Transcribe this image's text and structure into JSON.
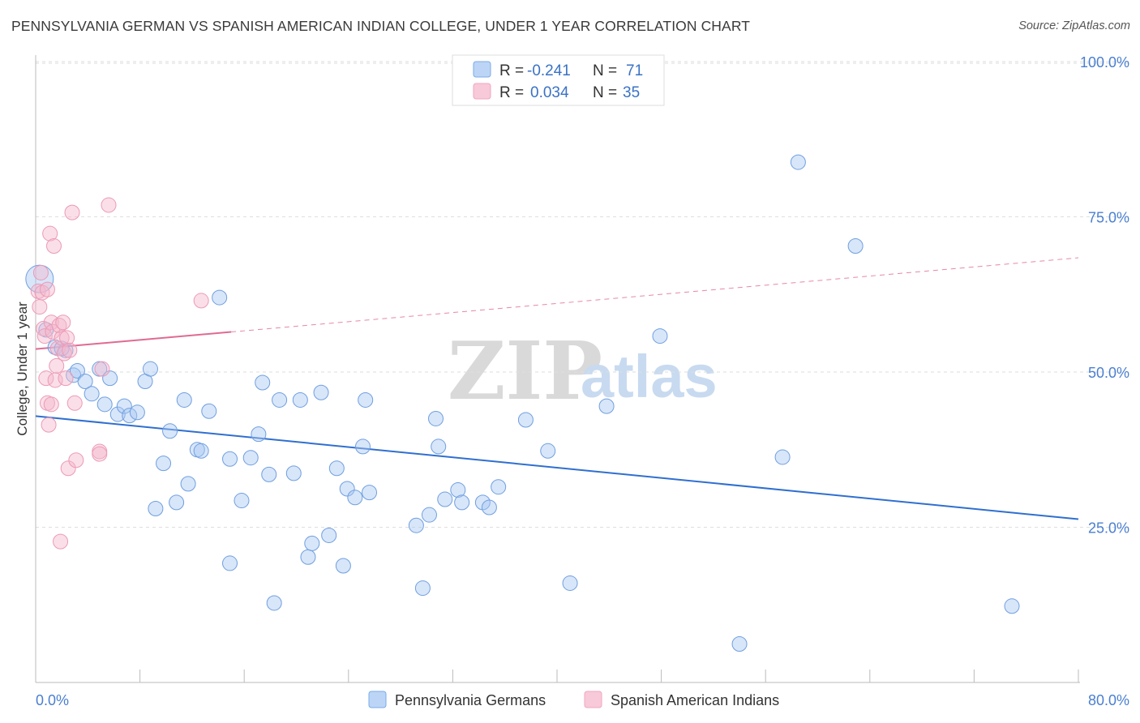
{
  "title": "PENNSYLVANIA GERMAN VS SPANISH AMERICAN INDIAN COLLEGE, UNDER 1 YEAR CORRELATION CHART",
  "source": "Source: ZipAtlas.com",
  "watermark": {
    "zip": "ZIP",
    "atlas": "atlas"
  },
  "legend": {
    "rows": [
      {
        "r_label": "R =",
        "r_value": "-0.241",
        "n_label": "N =",
        "n_value": "71",
        "color": "#a9c8f2"
      },
      {
        "r_label": "R =",
        "r_value": "0.034",
        "n_label": "N =",
        "n_value": "35",
        "color": "#f5b8cc"
      }
    ]
  },
  "bottom_legend": [
    {
      "label": "Pennsylvania Germans",
      "color": "#a9c8f2"
    },
    {
      "label": "Spanish American Indians",
      "color": "#f5b8cc"
    }
  ],
  "chart_data": {
    "type": "scatter",
    "title": "PENNSYLVANIA GERMAN VS SPANISH AMERICAN INDIAN COLLEGE, UNDER 1 YEAR CORRELATION CHART",
    "xlabel": "",
    "ylabel": "College, Under 1 year",
    "xlim": [
      0,
      80
    ],
    "ylim": [
      0,
      105
    ],
    "x_tick_labels": [
      "0.0%",
      "80.0%"
    ],
    "y_ticks": [
      25,
      50,
      75,
      100
    ],
    "y_tick_labels": [
      "25.0%",
      "50.0%",
      "75.0%",
      "100.0%"
    ],
    "grid": true,
    "legend_position": "top-center",
    "series": [
      {
        "name": "Pennsylvania Germans",
        "color": "#7aaae8",
        "trend": {
          "x": [
            0,
            80
          ],
          "y": [
            42.9,
            26.3
          ],
          "style": "solid",
          "color": "#2f6fd0"
        },
        "points": [
          [
            0.3,
            65.0
          ],
          [
            0.8,
            56.8
          ],
          [
            1.5,
            54.0
          ],
          [
            2.3,
            53.5
          ],
          [
            2.9,
            49.5
          ],
          [
            3.2,
            50.2
          ],
          [
            3.8,
            48.5
          ],
          [
            4.3,
            46.5
          ],
          [
            5.3,
            44.8
          ],
          [
            4.9,
            50.5
          ],
          [
            5.7,
            49.0
          ],
          [
            6.3,
            43.2
          ],
          [
            6.8,
            44.5
          ],
          [
            7.2,
            43.0
          ],
          [
            7.8,
            43.5
          ],
          [
            8.4,
            48.5
          ],
          [
            8.8,
            50.5
          ],
          [
            9.2,
            28.0
          ],
          [
            9.8,
            35.3
          ],
          [
            10.3,
            40.5
          ],
          [
            10.8,
            29.0
          ],
          [
            11.4,
            45.5
          ],
          [
            11.7,
            32.0
          ],
          [
            12.4,
            37.5
          ],
          [
            12.7,
            37.3
          ],
          [
            13.3,
            43.7
          ],
          [
            14.1,
            62.0
          ],
          [
            14.9,
            19.2
          ],
          [
            14.9,
            36.0
          ],
          [
            15.8,
            29.3
          ],
          [
            16.5,
            36.2
          ],
          [
            17.1,
            40.0
          ],
          [
            17.4,
            48.3
          ],
          [
            17.9,
            33.5
          ],
          [
            18.3,
            12.8
          ],
          [
            18.7,
            45.5
          ],
          [
            19.8,
            33.7
          ],
          [
            20.3,
            45.5
          ],
          [
            20.9,
            20.2
          ],
          [
            21.2,
            22.4
          ],
          [
            21.9,
            46.7
          ],
          [
            22.5,
            23.7
          ],
          [
            23.1,
            34.5
          ],
          [
            23.6,
            18.8
          ],
          [
            23.9,
            31.2
          ],
          [
            24.5,
            29.8
          ],
          [
            25.1,
            38.0
          ],
          [
            25.3,
            45.5
          ],
          [
            25.6,
            30.6
          ],
          [
            29.2,
            25.3
          ],
          [
            29.7,
            15.2
          ],
          [
            30.2,
            27.0
          ],
          [
            30.7,
            42.5
          ],
          [
            30.9,
            38.0
          ],
          [
            31.4,
            29.5
          ],
          [
            32.4,
            31.0
          ],
          [
            32.7,
            29.0
          ],
          [
            34.3,
            29.0
          ],
          [
            34.8,
            28.2
          ],
          [
            35.5,
            31.5
          ],
          [
            37.6,
            42.3
          ],
          [
            39.3,
            37.3
          ],
          [
            41.0,
            16.0
          ],
          [
            43.8,
            44.5
          ],
          [
            47.9,
            55.8
          ],
          [
            54.0,
            6.2
          ],
          [
            57.3,
            36.3
          ],
          [
            58.5,
            83.8
          ],
          [
            62.9,
            70.3
          ],
          [
            74.9,
            12.3
          ],
          [
            2.0,
            53.8
          ]
        ]
      },
      {
        "name": "Spanish American Indians",
        "color": "#f1a6bf",
        "trend": {
          "x": [
            0,
            80
          ],
          "y": [
            53.7,
            68.4
          ],
          "solid_until": 15.0,
          "style": "solid-then-dashed",
          "color": "#e06a93"
        },
        "points": [
          [
            0.2,
            63.0
          ],
          [
            0.3,
            60.5
          ],
          [
            0.4,
            66.0
          ],
          [
            0.5,
            62.8
          ],
          [
            0.6,
            57.0
          ],
          [
            0.7,
            55.8
          ],
          [
            0.8,
            49.0
          ],
          [
            0.9,
            45.0
          ],
          [
            1.0,
            41.5
          ],
          [
            1.1,
            72.3
          ],
          [
            1.2,
            58.0
          ],
          [
            1.3,
            56.5
          ],
          [
            1.4,
            70.3
          ],
          [
            1.5,
            48.7
          ],
          [
            1.6,
            51.0
          ],
          [
            1.7,
            53.8
          ],
          [
            1.8,
            57.5
          ],
          [
            1.9,
            22.7
          ],
          [
            2.0,
            55.5
          ],
          [
            2.1,
            58.0
          ],
          [
            2.2,
            53.0
          ],
          [
            2.3,
            49.0
          ],
          [
            2.4,
            55.5
          ],
          [
            2.5,
            34.5
          ],
          [
            2.6,
            53.5
          ],
          [
            2.8,
            75.7
          ],
          [
            3.0,
            45.0
          ],
          [
            3.1,
            35.8
          ],
          [
            4.9,
            37.2
          ],
          [
            4.9,
            36.8
          ],
          [
            5.1,
            50.5
          ],
          [
            5.6,
            76.9
          ],
          [
            12.7,
            61.5
          ],
          [
            0.9,
            63.3
          ],
          [
            1.2,
            44.8
          ]
        ]
      }
    ]
  }
}
